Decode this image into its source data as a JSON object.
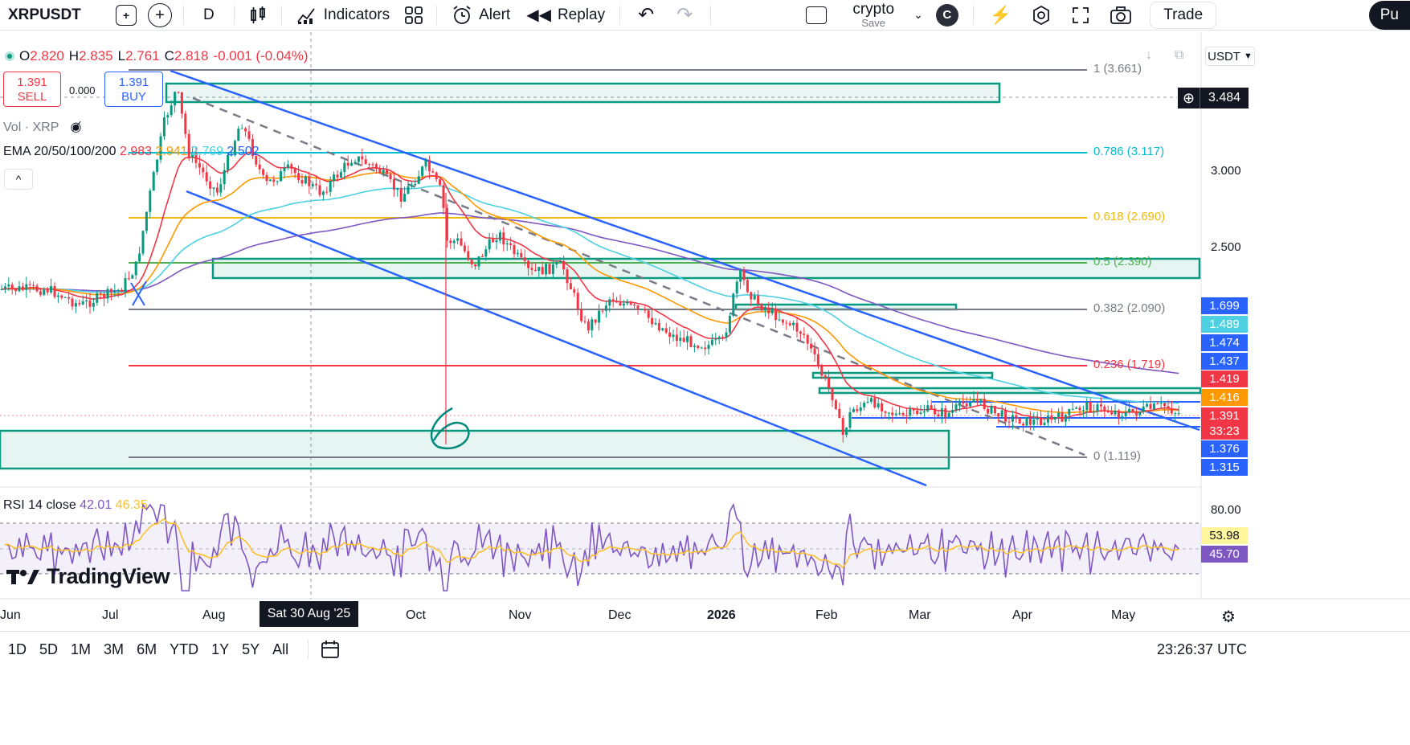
{
  "toolbar": {
    "symbol": "XRPUSDT",
    "interval": "D",
    "indicators_label": "Indicators",
    "alert_label": "Alert",
    "replay_label": "Replay",
    "layout_name": "crypto",
    "layout_sub": "Save",
    "avatar_letter": "C",
    "trade_label": "Trade",
    "publish_label": "Pu"
  },
  "legend": {
    "o_label": "O",
    "o": "2.820",
    "h_label": "H",
    "h": "2.835",
    "l_label": "L",
    "l": "2.761",
    "c_label": "C",
    "c": "2.818",
    "change": "-0.001 (-0.04%)",
    "sell_price": "1.391",
    "sell_label": "SELL",
    "spread": "0.000",
    "buy_price": "1.391",
    "buy_label": "BUY",
    "vol_label": "Vol · XRP",
    "ema_label": "EMA 20/50/100/200",
    "ema_values": [
      "2.983",
      "2.941",
      "2.769",
      "2.502"
    ],
    "rsi_label": "RSI 14 close",
    "rsi_values": [
      "42.01",
      "46.35"
    ],
    "collapse_glyph": "^"
  },
  "colors": {
    "up": "#089981",
    "down": "#f23645",
    "channel": "#2962ff",
    "zone": "#089981",
    "ema20": "#f23645",
    "ema50": "#ff9800",
    "ema100": "#4dd0e1",
    "ema200": "#7e57c2",
    "rsi": "#7e57c2",
    "rsi_ma": "#fbc02d"
  },
  "fib_levels": [
    {
      "label": "1 (3.661)",
      "color": "#787b86"
    },
    {
      "label": "0.786 (3.117)",
      "color": "#00bcd4"
    },
    {
      "label": "0.618 (2.690)",
      "color": "#f0b90b"
    },
    {
      "label": "0.5 (2.390)",
      "color": "#4caf50"
    },
    {
      "label": "0.382 (2.090)",
      "color": "#787b86"
    },
    {
      "label": "0.236 (1.719)",
      "color": "#f23645"
    },
    {
      "label": "0 (1.119)",
      "color": "#787b86"
    }
  ],
  "price_scale": {
    "currency": "USDT",
    "crosshair_price": "3.484",
    "ticks": [
      "3.000",
      "2.500",
      "80.00"
    ],
    "labels": [
      {
        "text": "1.699",
        "bg": "#2962ff"
      },
      {
        "text": "1.489",
        "bg": "#4dd0e1"
      },
      {
        "text": "1.474",
        "bg": "#2962ff"
      },
      {
        "text": "1.437",
        "bg": "#2962ff"
      },
      {
        "text": "1.419",
        "bg": "#f23645"
      },
      {
        "text": "1.416",
        "bg": "#ff9800"
      },
      {
        "text": "1.391",
        "bg": "#f23645"
      },
      {
        "text": "33:23",
        "bg": "#f23645"
      },
      {
        "text": "1.376",
        "bg": "#2962ff"
      },
      {
        "text": "1.315",
        "bg": "#2962ff"
      }
    ],
    "rsi_labels": [
      {
        "text": "53.98",
        "bg": "#fff59d"
      },
      {
        "text": "45.70",
        "bg": "#7e57c2"
      }
    ]
  },
  "time_axis": {
    "labels": [
      "Jun",
      "Jul",
      "Aug",
      "Oct",
      "Nov",
      "Dec",
      "2026",
      "Feb",
      "Mar",
      "Apr",
      "May"
    ],
    "crosshair_time": "Sat 30 Aug '25"
  },
  "annotation": {
    "text": "6"
  },
  "bottom": {
    "ranges": [
      "1D",
      "5D",
      "1M",
      "3M",
      "6M",
      "YTD",
      "1Y",
      "5Y",
      "All"
    ],
    "clock": "23:26:37 UTC"
  },
  "brand": "TradingView"
}
